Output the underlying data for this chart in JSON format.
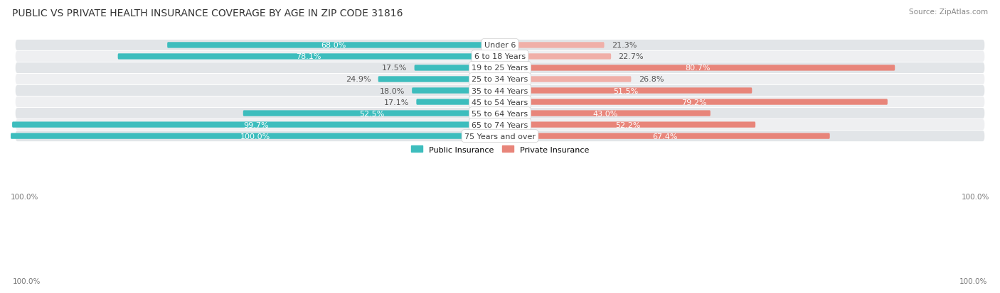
{
  "title": "PUBLIC VS PRIVATE HEALTH INSURANCE COVERAGE BY AGE IN ZIP CODE 31816",
  "source": "Source: ZipAtlas.com",
  "categories": [
    "Under 6",
    "6 to 18 Years",
    "19 to 25 Years",
    "25 to 34 Years",
    "35 to 44 Years",
    "45 to 54 Years",
    "55 to 64 Years",
    "65 to 74 Years",
    "75 Years and over"
  ],
  "public_values": [
    68.0,
    78.1,
    17.5,
    24.9,
    18.0,
    17.1,
    52.5,
    99.7,
    100.0
  ],
  "private_values": [
    21.3,
    22.7,
    80.7,
    26.8,
    51.5,
    79.2,
    43.0,
    52.2,
    67.4
  ],
  "public_color": "#3DBDBD",
  "private_color": "#E8857A",
  "private_color_light": "#F0AFA8",
  "row_bg_dark": "#E2E5E8",
  "row_bg_light": "#EEEFF1",
  "pill_bg": "#F5F5F7",
  "title_fontsize": 10,
  "source_fontsize": 7.5,
  "bar_label_fontsize": 8,
  "category_fontsize": 8,
  "legend_fontsize": 8,
  "axis_label_fontsize": 7.5,
  "max_value": 100.0,
  "bar_height": 0.52,
  "label_inside_threshold": 28
}
